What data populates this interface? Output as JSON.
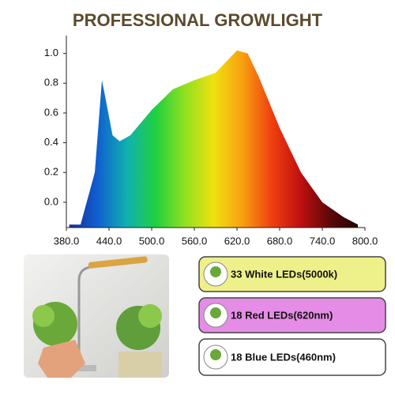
{
  "chart_data": {
    "type": "area",
    "title": "PROFESSIONAL GROWLIGHT",
    "x": [
      384,
      400,
      420,
      430,
      435,
      445,
      455,
      470,
      500,
      530,
      560,
      590,
      610,
      620,
      635,
      650,
      680,
      710,
      740,
      770,
      790
    ],
    "values": [
      -0.15,
      -0.15,
      0.2,
      0.82,
      0.7,
      0.45,
      0.41,
      0.45,
      0.62,
      0.76,
      0.82,
      0.87,
      0.97,
      1.02,
      1.0,
      0.85,
      0.5,
      0.2,
      0.0,
      -0.1,
      -0.15
    ],
    "colors": [
      "#1a2a9a",
      "#1060d0",
      "#10b0b0",
      "#20d040",
      "#90e020",
      "#f0e010",
      "#f8a010",
      "#f04010",
      "#c01010",
      "#600808",
      "#200404"
    ],
    "xlim": [
      380,
      800
    ],
    "xticks": [
      {
        "value": 380,
        "label": "380.0"
      },
      {
        "value": 440,
        "label": "440.0"
      },
      {
        "value": 500,
        "label": "500.0"
      },
      {
        "value": 560,
        "label": "560.0"
      },
      {
        "value": 620,
        "label": "620.0"
      },
      {
        "value": 680,
        "label": "680.0"
      },
      {
        "value": 740,
        "label": "740.0"
      },
      {
        "value": 800,
        "label": "800.0"
      }
    ],
    "ylim": [
      -0.17,
      1.12
    ],
    "yticks": [
      {
        "value": 0,
        "label": "0.0"
      },
      {
        "value": 0.2,
        "label": "0.2"
      },
      {
        "value": 0.4,
        "label": "0.4"
      },
      {
        "value": 0.6,
        "label": "0.6"
      },
      {
        "value": 0.8,
        "label": "0.8"
      },
      {
        "value": 1.0,
        "label": "1.0"
      }
    ]
  },
  "led_labels": [
    "33 White LEDs(5000k)",
    "18 Red LEDs(620nm)",
    "18 Blue LEDs(460nm)"
  ]
}
